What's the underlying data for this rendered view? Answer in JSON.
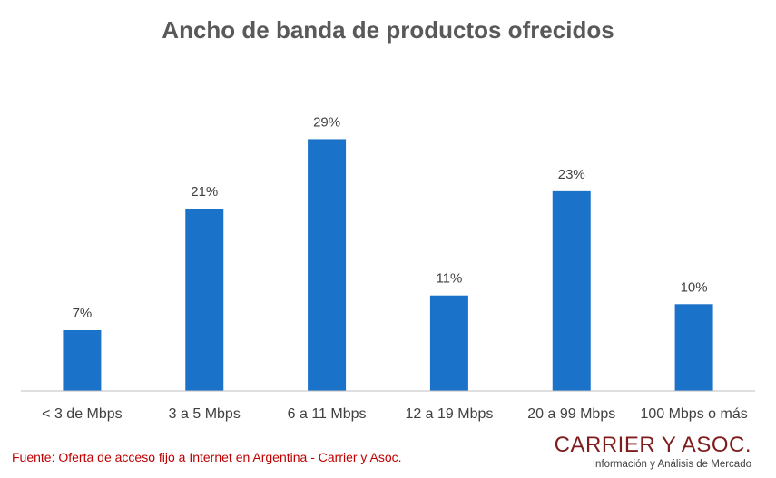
{
  "chart_data": {
    "type": "bar",
    "title": "Ancho de banda de productos ofrecidos",
    "categories": [
      "<  3 de Mbps",
      "3 a 5 Mbps",
      "6 a 11 Mbps",
      "12 a 19 Mbps",
      "20 a 99 Mbps",
      "100 Mbps o más"
    ],
    "values": [
      7,
      21,
      29,
      11,
      23,
      10
    ],
    "data_labels": [
      "7%",
      "21%",
      "29%",
      "11%",
      "23%",
      "10%"
    ],
    "value_unit": "%",
    "ylim": [
      0,
      35
    ],
    "grid": false,
    "legend": "none",
    "bar_color": "#1b73c9"
  },
  "footer": {
    "source": "Fuente: Oferta de acceso fijo a Internet en Argentina - Carrier y Asoc.",
    "brand_name": "CARRIER Y ASOC.",
    "brand_tagline": "Información y Análisis de Mercado"
  },
  "colors": {
    "title": "#595959",
    "source": "#c00000",
    "brand": "#7f1d1d"
  }
}
